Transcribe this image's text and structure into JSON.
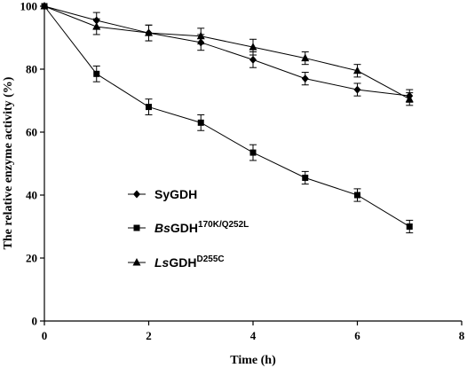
{
  "chart_data": {
    "type": "line",
    "title": "",
    "xlabel": "Time (h)",
    "ylabel": "The relative enzyme activity (%)",
    "xlim": [
      0,
      8
    ],
    "ylim": [
      0,
      100
    ],
    "xticks": [
      0,
      2,
      4,
      6,
      8
    ],
    "yticks": [
      0,
      20,
      40,
      60,
      80,
      100
    ],
    "grid": false,
    "legend_position": "lower-left",
    "series": [
      {
        "name_prefix": "Sy",
        "name_main": "GDH",
        "name_sup": "",
        "marker": "diamond",
        "x": [
          0,
          1,
          2,
          3,
          4,
          5,
          6,
          7
        ],
        "y": [
          100,
          95.5,
          91.5,
          88.5,
          83,
          77,
          73.5,
          71.5
        ],
        "err": [
          0,
          2.5,
          2.5,
          2.5,
          2.5,
          2.0,
          2.0,
          2.0
        ]
      },
      {
        "name_prefix": "Bs",
        "name_main": "GDH",
        "name_sup": "170K/Q252L",
        "marker": "square",
        "x": [
          0,
          1,
          2,
          3,
          4,
          5,
          6,
          7
        ],
        "y": [
          100,
          78.5,
          68,
          63,
          53.5,
          45.5,
          40,
          30
        ],
        "err": [
          0,
          2.5,
          2.5,
          2.5,
          2.5,
          2.0,
          2.0,
          2.0
        ]
      },
      {
        "name_prefix": "Ls",
        "name_main": "GDH",
        "name_sup": "D255C",
        "marker": "triangle",
        "x": [
          0,
          1,
          2,
          3,
          4,
          5,
          6,
          7
        ],
        "y": [
          100,
          93.5,
          91.5,
          90.5,
          87,
          83.5,
          79.5,
          70.5
        ],
        "err": [
          0,
          2.5,
          2.5,
          2.5,
          2.5,
          2.0,
          2.0,
          2.0
        ]
      }
    ],
    "colors": {
      "line": "#000000",
      "marker": "#000000",
      "background": "#ffffff"
    }
  }
}
